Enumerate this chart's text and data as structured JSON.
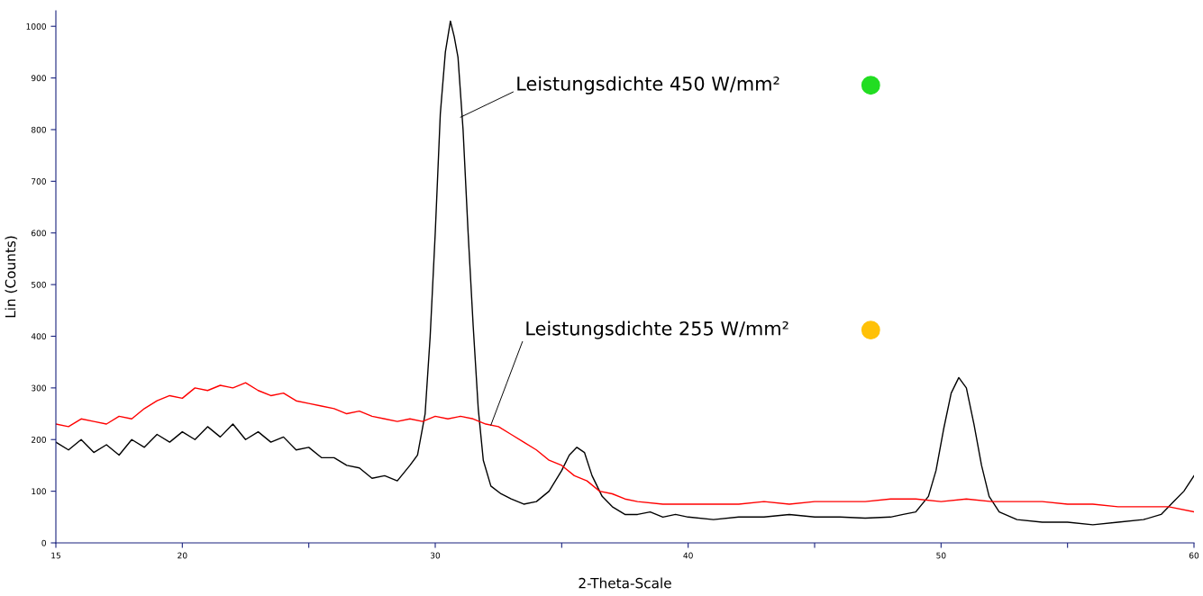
{
  "chart_data": {
    "type": "line",
    "xlabel": "2-Theta-Scale",
    "ylabel": "Lin (Counts)",
    "xlim": [
      15,
      60
    ],
    "ylim": [
      0,
      1030
    ],
    "xticks": [
      15,
      20,
      {
        "value": 25,
        "label": null
      },
      30,
      {
        "value": 35,
        "label": null
      },
      40,
      {
        "value": 45,
        "label": null
      },
      50,
      {
        "value": 55,
        "label": null
      },
      60
    ],
    "yticks": [
      0,
      100,
      200,
      300,
      400,
      500,
      600,
      700,
      800,
      900,
      1000
    ],
    "grid": false,
    "legend": false,
    "marker": "none",
    "line_style": "solid",
    "series": [
      {
        "color": "#000000",
        "x": [
          15,
          15.5,
          16,
          16.5,
          17,
          17.5,
          18,
          18.5,
          19,
          19.5,
          20,
          20.5,
          21,
          21.5,
          22,
          22.5,
          23,
          23.5,
          24,
          24.5,
          25,
          25.5,
          26,
          26.5,
          27,
          27.5,
          28,
          28.5,
          29,
          29.3,
          29.6,
          29.8,
          30,
          30.2,
          30.4,
          30.6,
          30.75,
          30.9,
          31.1,
          31.3,
          31.5,
          31.7,
          31.9,
          32.2,
          32.6,
          33,
          33.5,
          34,
          34.5,
          35,
          35.3,
          35.6,
          35.9,
          36.2,
          36.6,
          37,
          37.5,
          38,
          38.5,
          39,
          39.5,
          40,
          41,
          42,
          43,
          44,
          45,
          46,
          47,
          48,
          48.5,
          49,
          49.5,
          49.8,
          50.1,
          50.4,
          50.7,
          51,
          51.3,
          51.6,
          51.9,
          52.3,
          53,
          54,
          55,
          56,
          57,
          58,
          58.7,
          59.2,
          59.6,
          60
        ],
        "values": [
          195,
          180,
          200,
          175,
          190,
          170,
          200,
          185,
          210,
          195,
          215,
          200,
          225,
          205,
          230,
          200,
          215,
          195,
          205,
          180,
          185,
          165,
          165,
          150,
          145,
          125,
          130,
          120,
          150,
          170,
          250,
          400,
          600,
          830,
          950,
          1010,
          980,
          940,
          800,
          600,
          420,
          260,
          160,
          110,
          95,
          85,
          75,
          80,
          100,
          140,
          170,
          185,
          175,
          130,
          90,
          70,
          55,
          55,
          60,
          50,
          55,
          50,
          45,
          50,
          50,
          55,
          50,
          50,
          48,
          50,
          55,
          60,
          90,
          140,
          220,
          290,
          320,
          300,
          230,
          150,
          90,
          60,
          45,
          40,
          40,
          35,
          40,
          45,
          55,
          80,
          100,
          130
        ]
      },
      {
        "color": "#ff0000",
        "x": [
          15,
          15.5,
          16,
          16.5,
          17,
          17.5,
          18,
          18.5,
          19,
          19.5,
          20,
          20.5,
          21,
          21.5,
          22,
          22.5,
          23,
          23.5,
          24,
          24.5,
          25,
          25.5,
          26,
          26.5,
          27,
          27.5,
          28,
          28.5,
          29,
          29.5,
          30,
          30.5,
          31,
          31.5,
          32,
          32.5,
          33,
          33.5,
          34,
          34.5,
          35,
          35.5,
          36,
          36.5,
          37,
          37.5,
          38,
          39,
          40,
          41,
          42,
          43,
          44,
          45,
          46,
          47,
          48,
          49,
          50,
          51,
          52,
          53,
          54,
          55,
          56,
          57,
          58,
          59,
          60
        ],
        "values": [
          230,
          225,
          240,
          235,
          230,
          245,
          240,
          260,
          275,
          285,
          280,
          300,
          295,
          305,
          300,
          310,
          295,
          285,
          290,
          275,
          270,
          265,
          260,
          250,
          255,
          245,
          240,
          235,
          240,
          235,
          245,
          240,
          245,
          240,
          230,
          225,
          210,
          195,
          180,
          160,
          150,
          130,
          120,
          100,
          95,
          85,
          80,
          75,
          75,
          75,
          75,
          80,
          75,
          80,
          80,
          80,
          85,
          85,
          80,
          85,
          80,
          80,
          80,
          75,
          75,
          70,
          70,
          70,
          60
        ]
      }
    ],
    "annotations": [
      {
        "text": "Leistungsdichte 450 W/mm²",
        "x": 31.0,
        "y": 824
      },
      {
        "text": "Leistungsdichte 255 W/mm²",
        "x": 32.2,
        "y": 228
      }
    ]
  }
}
